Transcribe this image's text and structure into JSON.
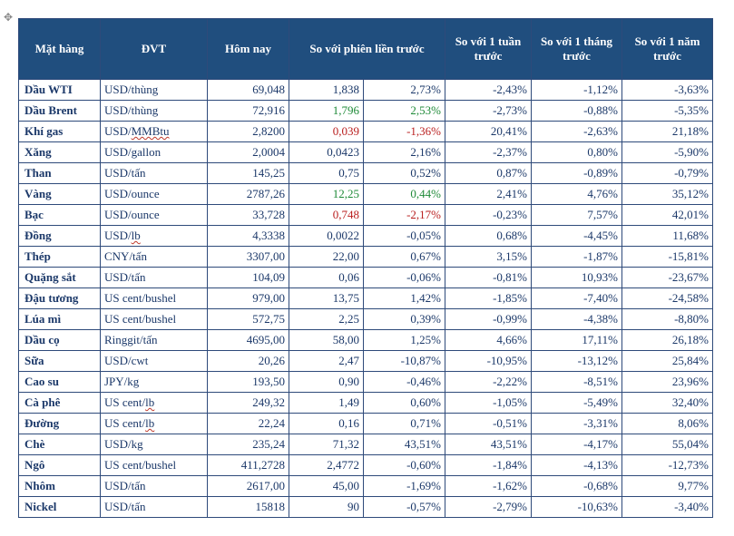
{
  "headers": {
    "c1": "Mặt hàng",
    "c2": "ĐVT",
    "c3": "Hôm nay",
    "c45": "So với phiên liền trước",
    "c6": "So với 1 tuần trước",
    "c7": "So với 1 tháng trước",
    "c8": "So với 1 năm trước"
  },
  "rows": [
    {
      "name": "Dầu WTI",
      "unit": "USD/thùng",
      "u_sq": false,
      "today": "69,048",
      "d1": "1,838",
      "d1c": "",
      "d2": "2,73%",
      "d2c": "",
      "wk": "-2,43%",
      "mo": "-1,12%",
      "yr": "-3,63%"
    },
    {
      "name": "Dầu Brent",
      "unit": "USD/thùng",
      "u_sq": false,
      "today": "72,916",
      "d1": "1,796",
      "d1c": "green",
      "d2": "2,53%",
      "d2c": "green",
      "wk": "-2,73%",
      "mo": "-0,88%",
      "yr": "-5,35%"
    },
    {
      "name": "Khí gas",
      "unit": "USD/MMBtu",
      "u_sq": true,
      "today": "2,8200",
      "d1": "0,039",
      "d1c": "red",
      "d2": "-1,36%",
      "d2c": "red",
      "wk": "20,41%",
      "mo": "-2,63%",
      "yr": "21,18%"
    },
    {
      "name": "Xăng",
      "unit": "USD/gallon",
      "u_sq": false,
      "today": "2,0004",
      "d1": "0,0423",
      "d1c": "",
      "d2": "2,16%",
      "d2c": "",
      "wk": "-2,37%",
      "mo": "0,80%",
      "yr": "-5,90%"
    },
    {
      "name": "Than",
      "unit": "USD/tấn",
      "u_sq": false,
      "today": "145,25",
      "d1": "0,75",
      "d1c": "",
      "d2": "0,52%",
      "d2c": "",
      "wk": "0,87%",
      "mo": "-0,89%",
      "yr": "-0,79%"
    },
    {
      "name": "Vàng",
      "unit": "USD/ounce",
      "u_sq": false,
      "today": "2787,26",
      "d1": "12,25",
      "d1c": "green",
      "d2": "0,44%",
      "d2c": "green",
      "wk": "2,41%",
      "mo": "4,76%",
      "yr": "35,12%"
    },
    {
      "name": "Bạc",
      "unit": "USD/ounce",
      "u_sq": false,
      "today": "33,728",
      "d1": "0,748",
      "d1c": "red",
      "d2": "-2,17%",
      "d2c": "red",
      "wk": "-0,23%",
      "mo": "7,57%",
      "yr": "42,01%"
    },
    {
      "name": "Đồng",
      "unit": "USD/lb",
      "u_sq": true,
      "today": "4,3338",
      "d1": "0,0022",
      "d1c": "",
      "d2": "-0,05%",
      "d2c": "",
      "wk": "0,68%",
      "mo": "-4,45%",
      "yr": "11,68%"
    },
    {
      "name": "Thép",
      "unit": "CNY/tấn",
      "u_sq": false,
      "today": "3307,00",
      "d1": "22,00",
      "d1c": "",
      "d2": "0,67%",
      "d2c": "",
      "wk": "3,15%",
      "mo": "-1,87%",
      "yr": "-15,81%"
    },
    {
      "name": "Quặng sắt",
      "unit": "USD/tấn",
      "u_sq": false,
      "today": "104,09",
      "d1": "0,06",
      "d1c": "",
      "d2": "-0,06%",
      "d2c": "",
      "wk": "-0,81%",
      "mo": "10,93%",
      "yr": "-23,67%"
    },
    {
      "name": "Đậu tương",
      "unit": "US cent/bushel",
      "u_sq": false,
      "today": "979,00",
      "d1": "13,75",
      "d1c": "",
      "d2": "1,42%",
      "d2c": "",
      "wk": "-1,85%",
      "mo": "-7,40%",
      "yr": "-24,58%"
    },
    {
      "name": "Lúa mì",
      "unit": "US cent/bushel",
      "u_sq": false,
      "today": "572,75",
      "d1": "2,25",
      "d1c": "",
      "d2": "0,39%",
      "d2c": "",
      "wk": "-0,99%",
      "mo": "-4,38%",
      "yr": "-8,80%"
    },
    {
      "name": "Dầu cọ",
      "unit": "Ringgit/tấn",
      "u_sq": false,
      "today": "4695,00",
      "d1": "58,00",
      "d1c": "",
      "d2": "1,25%",
      "d2c": "",
      "wk": "4,66%",
      "mo": "17,11%",
      "yr": "26,18%"
    },
    {
      "name": "Sữa",
      "unit": "USD/cwt",
      "u_sq": false,
      "today": "20,26",
      "d1": "2,47",
      "d1c": "",
      "d2": "-10,87%",
      "d2c": "",
      "wk": "-10,95%",
      "mo": "-13,12%",
      "yr": "25,84%"
    },
    {
      "name": "Cao su",
      "unit": "JPY/kg",
      "u_sq": false,
      "today": "193,50",
      "d1": "0,90",
      "d1c": "",
      "d2": "-0,46%",
      "d2c": "",
      "wk": "-2,22%",
      "mo": "-8,51%",
      "yr": "23,96%"
    },
    {
      "name": "Cà phê",
      "unit": "US cent/lb",
      "u_sq": true,
      "today": "249,32",
      "d1": "1,49",
      "d1c": "",
      "d2": "0,60%",
      "d2c": "",
      "wk": "-1,05%",
      "mo": "-5,49%",
      "yr": "32,40%"
    },
    {
      "name": "Đường",
      "unit": "US cent/lb",
      "u_sq": true,
      "today": "22,24",
      "d1": "0,16",
      "d1c": "",
      "d2": "0,71%",
      "d2c": "",
      "wk": "-0,51%",
      "mo": "-3,31%",
      "yr": "8,06%"
    },
    {
      "name": "Chè",
      "unit": "USD/kg",
      "u_sq": false,
      "today": "235,24",
      "d1": "71,32",
      "d1c": "",
      "d2": "43,51%",
      "d2c": "",
      "wk": "43,51%",
      "mo": "-4,17%",
      "yr": "55,04%"
    },
    {
      "name": "Ngô",
      "unit": "US cent/bushel",
      "u_sq": false,
      "today": "411,2728",
      "d1": "2,4772",
      "d1c": "",
      "d2": "-0,60%",
      "d2c": "",
      "wk": "-1,84%",
      "mo": "-4,13%",
      "yr": "-12,73%"
    },
    {
      "name": "Nhôm",
      "unit": "USD/tấn",
      "u_sq": false,
      "today": "2617,00",
      "d1": "45,00",
      "d1c": "",
      "d2": "-1,69%",
      "d2c": "",
      "wk": "-1,62%",
      "mo": "-0,68%",
      "yr": "9,77%"
    },
    {
      "name": "Nickel",
      "unit": "USD/tấn",
      "u_sq": false,
      "today": "15818",
      "d1": "90",
      "d1c": "",
      "d2": "-0,57%",
      "d2c": "",
      "wk": "-2,79%",
      "mo": "-10,63%",
      "yr": "-3,40%"
    }
  ]
}
